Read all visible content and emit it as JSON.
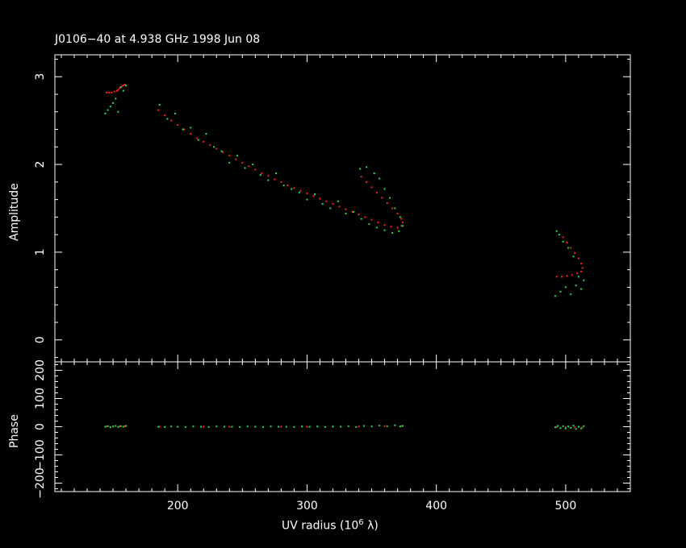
{
  "title": "J0106−40 at 4.938 GHz 1998 Jun 08",
  "xlabel_prefix": "UV radius  (10",
  "xlabel_exp": "6",
  "xlabel_suffix": " λ)",
  "colors": {
    "model": "#ff2020",
    "data": "#22dd55",
    "axes": "#ffffff",
    "background": "#000000"
  },
  "chart_data": [
    {
      "type": "scatter",
      "name": "amplitude-panel",
      "ylabel": "Amplitude",
      "xlim": [
        105,
        550
      ],
      "ylim": [
        -0.25,
        3.25
      ],
      "xticks": [
        200,
        300,
        400,
        500
      ],
      "yticks": [
        0,
        1,
        2,
        3
      ],
      "series": [
        {
          "points": [
            [
              145,
              2.82
            ],
            [
              147,
              2.82
            ],
            [
              149,
              2.82
            ],
            [
              151,
              2.83
            ],
            [
              153,
              2.84
            ],
            [
              154,
              2.85
            ],
            [
              155,
              2.87
            ],
            [
              156,
              2.88
            ],
            [
              157,
              2.89
            ],
            [
              158,
              2.9
            ],
            [
              159,
              2.91
            ],
            [
              185,
              2.62
            ],
            [
              190,
              2.56
            ],
            [
              195,
              2.5
            ],
            [
              200,
              2.45
            ],
            [
              205,
              2.4
            ],
            [
              210,
              2.35
            ],
            [
              215,
              2.3
            ],
            [
              220,
              2.26
            ],
            [
              225,
              2.22
            ],
            [
              230,
              2.18
            ],
            [
              235,
              2.14
            ],
            [
              240,
              2.1
            ],
            [
              245,
              2.06
            ],
            [
              250,
              2.02
            ],
            [
              255,
              1.98
            ],
            [
              260,
              1.94
            ],
            [
              265,
              1.9
            ],
            [
              270,
              1.87
            ],
            [
              275,
              1.83
            ],
            [
              280,
              1.8
            ],
            [
              285,
              1.76
            ],
            [
              290,
              1.73
            ],
            [
              295,
              1.7
            ],
            [
              300,
              1.67
            ],
            [
              305,
              1.64
            ],
            [
              310,
              1.61
            ],
            [
              315,
              1.58
            ],
            [
              320,
              1.55
            ],
            [
              325,
              1.52
            ],
            [
              330,
              1.49
            ],
            [
              335,
              1.46
            ],
            [
              340,
              1.43
            ],
            [
              345,
              1.4
            ],
            [
              350,
              1.37
            ],
            [
              355,
              1.34
            ],
            [
              360,
              1.31
            ],
            [
              365,
              1.29
            ],
            [
              370,
              1.28
            ],
            [
              373,
              1.3
            ],
            [
              374,
              1.34
            ],
            [
              373,
              1.38
            ],
            [
              370,
              1.44
            ],
            [
              366,
              1.5
            ],
            [
              362,
              1.56
            ],
            [
              358,
              1.62
            ],
            [
              354,
              1.68
            ],
            [
              350,
              1.74
            ],
            [
              346,
              1.8
            ],
            [
              342,
              1.86
            ],
            [
              493,
              0.72
            ],
            [
              497,
              0.72
            ],
            [
              501,
              0.73
            ],
            [
              505,
              0.74
            ],
            [
              509,
              0.76
            ],
            [
              512,
              0.78
            ],
            [
              513,
              0.82
            ],
            [
              512,
              0.87
            ],
            [
              510,
              0.93
            ],
            [
              507,
              0.99
            ],
            [
              504,
              1.05
            ],
            [
              501,
              1.11
            ],
            [
              498,
              1.17
            ]
          ]
        },
        {
          "points": [
            [
              144,
              2.58
            ],
            [
              146,
              2.62
            ],
            [
              148,
              2.66
            ],
            [
              150,
              2.7
            ],
            [
              152,
              2.75
            ],
            [
              154,
              2.6
            ],
            [
              156,
              2.88
            ],
            [
              158,
              2.84
            ],
            [
              160,
              2.9
            ],
            [
              186,
              2.68
            ],
            [
              192,
              2.52
            ],
            [
              198,
              2.58
            ],
            [
              204,
              2.4
            ],
            [
              210,
              2.42
            ],
            [
              216,
              2.28
            ],
            [
              222,
              2.35
            ],
            [
              228,
              2.2
            ],
            [
              234,
              2.15
            ],
            [
              240,
              2.02
            ],
            [
              246,
              2.1
            ],
            [
              252,
              1.96
            ],
            [
              258,
              2.0
            ],
            [
              264,
              1.88
            ],
            [
              270,
              1.82
            ],
            [
              276,
              1.9
            ],
            [
              282,
              1.76
            ],
            [
              288,
              1.72
            ],
            [
              294,
              1.68
            ],
            [
              300,
              1.6
            ],
            [
              306,
              1.66
            ],
            [
              312,
              1.55
            ],
            [
              318,
              1.5
            ],
            [
              324,
              1.58
            ],
            [
              330,
              1.44
            ],
            [
              336,
              1.46
            ],
            [
              342,
              1.38
            ],
            [
              348,
              1.32
            ],
            [
              354,
              1.28
            ],
            [
              360,
              1.25
            ],
            [
              366,
              1.22
            ],
            [
              371,
              1.24
            ],
            [
              374,
              1.3
            ],
            [
              372,
              1.4
            ],
            [
              368,
              1.5
            ],
            [
              364,
              1.62
            ],
            [
              360,
              1.72
            ],
            [
              356,
              1.84
            ],
            [
              352,
              1.9
            ],
            [
              346,
              1.97
            ],
            [
              341,
              1.95
            ],
            [
              492,
              0.5
            ],
            [
              496,
              0.55
            ],
            [
              500,
              0.6
            ],
            [
              504,
              0.52
            ],
            [
              508,
              0.62
            ],
            [
              512,
              0.58
            ],
            [
              514,
              0.68
            ],
            [
              510,
              0.72
            ],
            [
              506,
              0.95
            ],
            [
              502,
              1.05
            ],
            [
              498,
              1.12
            ],
            [
              495,
              1.2
            ],
            [
              493,
              1.24
            ]
          ]
        }
      ]
    },
    {
      "type": "scatter",
      "name": "phase-panel",
      "ylabel": "Phase",
      "xlim": [
        105,
        550
      ],
      "ylim": [
        -230,
        230
      ],
      "xticks": [
        200,
        300,
        400,
        500
      ],
      "yticks": [
        -200,
        -100,
        0,
        100,
        200
      ],
      "series": [
        {
          "points": [
            [
              145,
              1
            ],
            [
              150,
              1
            ],
            [
              155,
              2
            ],
            [
              159,
              2
            ],
            [
              186,
              0
            ],
            [
              200,
              0
            ],
            [
              220,
              0
            ],
            [
              240,
              0
            ],
            [
              260,
              0
            ],
            [
              280,
              0
            ],
            [
              300,
              0
            ],
            [
              320,
              0
            ],
            [
              340,
              1
            ],
            [
              360,
              2
            ],
            [
              373,
              2
            ],
            [
              493,
              -1
            ],
            [
              500,
              -2
            ],
            [
              507,
              -2
            ],
            [
              513,
              -3
            ]
          ]
        },
        {
          "points": [
            [
              144,
              0
            ],
            [
              146,
              2
            ],
            [
              148,
              -2
            ],
            [
              150,
              1
            ],
            [
              152,
              3
            ],
            [
              154,
              -1
            ],
            [
              156,
              2
            ],
            [
              158,
              0
            ],
            [
              160,
              3
            ],
            [
              185,
              0
            ],
            [
              190,
              -1
            ],
            [
              195,
              1
            ],
            [
              200,
              0
            ],
            [
              206,
              -1
            ],
            [
              212,
              1
            ],
            [
              218,
              0
            ],
            [
              224,
              -1
            ],
            [
              230,
              1
            ],
            [
              236,
              0
            ],
            [
              242,
              0
            ],
            [
              248,
              -1
            ],
            [
              254,
              1
            ],
            [
              260,
              0
            ],
            [
              266,
              -1
            ],
            [
              272,
              1
            ],
            [
              278,
              0
            ],
            [
              284,
              0
            ],
            [
              290,
              -1
            ],
            [
              296,
              1
            ],
            [
              302,
              0
            ],
            [
              308,
              1
            ],
            [
              314,
              -1
            ],
            [
              320,
              1
            ],
            [
              326,
              0
            ],
            [
              332,
              2
            ],
            [
              338,
              -1
            ],
            [
              344,
              3
            ],
            [
              350,
              1
            ],
            [
              356,
              4
            ],
            [
              362,
              2
            ],
            [
              368,
              5
            ],
            [
              372,
              1
            ],
            [
              374,
              3
            ],
            [
              492,
              -2
            ],
            [
              494,
              3
            ],
            [
              496,
              -5
            ],
            [
              498,
              2
            ],
            [
              500,
              -6
            ],
            [
              502,
              1
            ],
            [
              504,
              -4
            ],
            [
              506,
              4
            ],
            [
              508,
              -8
            ],
            [
              510,
              0
            ],
            [
              512,
              -6
            ],
            [
              514,
              2
            ]
          ]
        }
      ]
    }
  ]
}
